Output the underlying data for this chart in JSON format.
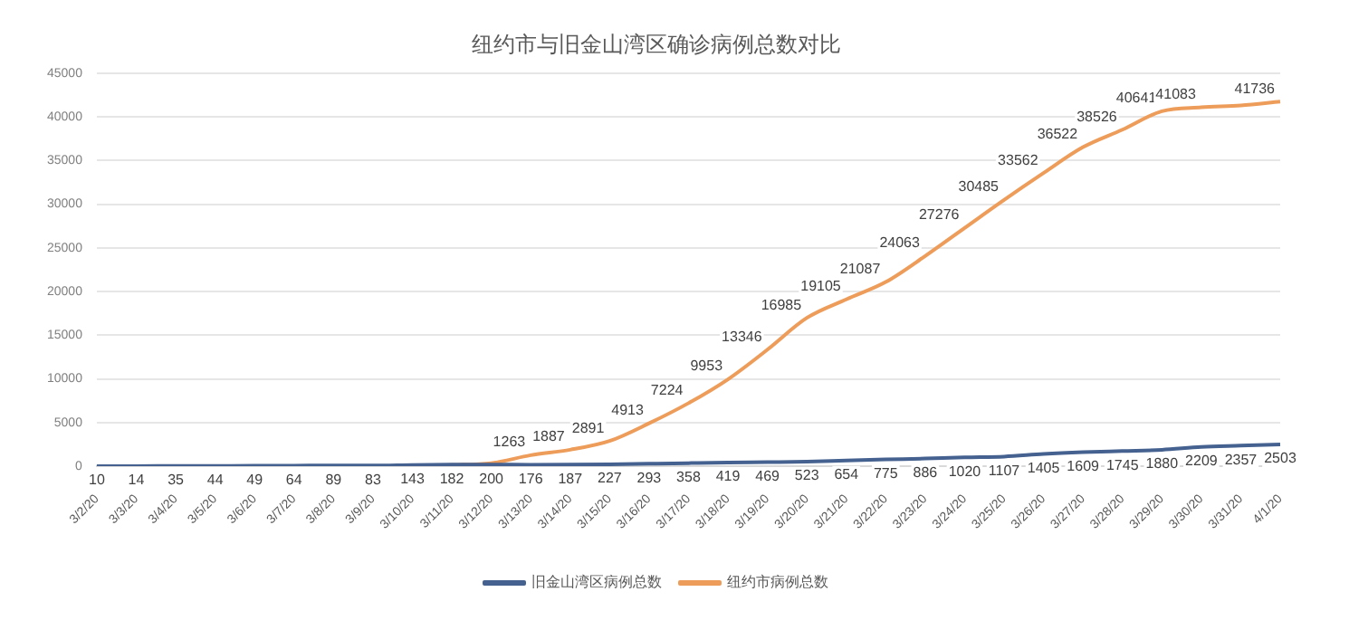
{
  "chart_data": {
    "type": "line",
    "title": "纽约市与旧金山湾区确诊病例总数对比",
    "categories": [
      "3/2/20",
      "3/3/20",
      "3/4/20",
      "3/5/20",
      "3/6/20",
      "3/7/20",
      "3/8/20",
      "3/9/20",
      "3/10/20",
      "3/11/20",
      "3/12/20",
      "3/13/20",
      "3/14/20",
      "3/15/20",
      "3/16/20",
      "3/17/20",
      "3/18/20",
      "3/19/20",
      "3/20/20",
      "3/21/20",
      "3/22/20",
      "3/23/20",
      "3/24/20",
      "3/25/20",
      "3/26/20",
      "3/27/20",
      "3/28/20",
      "3/29/20",
      "3/30/20",
      "3/31/20",
      "4/1/20"
    ],
    "series": [
      {
        "name": "旧金山湾区病例总数",
        "color": "#44618f",
        "values": [
          10,
          14,
          35,
          44,
          49,
          64,
          89,
          83,
          143,
          182,
          200,
          176,
          187,
          227,
          293,
          358,
          419,
          469,
          523,
          654,
          775,
          886,
          1020,
          1107,
          1405,
          1609,
          1745,
          1880,
          2209,
          2357,
          2503
        ],
        "value_labels": [
          "10",
          "14",
          "35",
          "44",
          "49",
          "64",
          "89",
          "83",
          "143",
          "182",
          "200",
          "176",
          "187",
          "227",
          "293",
          "358",
          "419",
          "469",
          "523",
          "654",
          "775",
          "886",
          "1020",
          "1107",
          "1405",
          "1609",
          "1745",
          "1880",
          "2209",
          "2357",
          "2503"
        ]
      },
      {
        "name": "纽约市病例总数",
        "color": "#ed9c5a",
        "values": [
          null,
          null,
          null,
          null,
          null,
          null,
          null,
          null,
          50,
          150,
          350,
          1263,
          1887,
          2891,
          4913,
          7224,
          9953,
          13346,
          16985,
          19105,
          21087,
          24063,
          27276,
          30485,
          33562,
          36522,
          38526,
          40641,
          41083,
          41300,
          41736
        ],
        "value_labels": [
          null,
          null,
          null,
          null,
          null,
          null,
          null,
          null,
          null,
          null,
          null,
          "1263",
          "1887",
          "2891",
          "4913",
          "7224",
          "9953",
          "13346",
          "16985",
          "19105",
          "21087",
          "24063",
          "27276",
          "30485",
          "33562",
          "36522",
          "38526",
          "40641",
          "41083",
          null,
          "41736"
        ]
      }
    ],
    "ylim": [
      0,
      45000
    ],
    "yticks": [
      0,
      5000,
      10000,
      15000,
      20000,
      25000,
      30000,
      35000,
      40000,
      45000
    ],
    "grid": "y",
    "legend": "bottom",
    "marker": "none",
    "line_style": "solid"
  }
}
